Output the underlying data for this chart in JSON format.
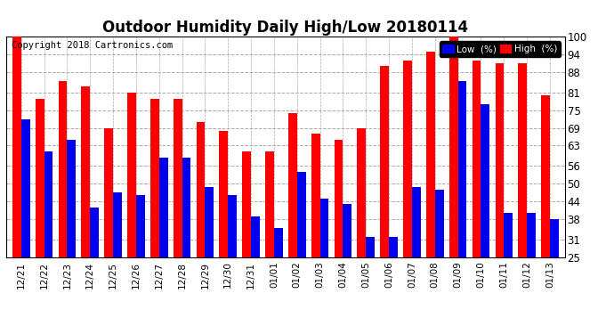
{
  "title": "Outdoor Humidity Daily High/Low 20180114",
  "copyright": "Copyright 2018 Cartronics.com",
  "dates": [
    "12/21",
    "12/22",
    "12/23",
    "12/24",
    "12/25",
    "12/26",
    "12/27",
    "12/28",
    "12/29",
    "12/30",
    "12/31",
    "01/01",
    "01/02",
    "01/03",
    "01/04",
    "01/05",
    "01/06",
    "01/07",
    "01/08",
    "01/09",
    "01/10",
    "01/11",
    "01/12",
    "01/13"
  ],
  "high": [
    100,
    79,
    85,
    83,
    69,
    81,
    79,
    79,
    71,
    68,
    61,
    61,
    74,
    67,
    65,
    69,
    90,
    92,
    95,
    100,
    92,
    91,
    91,
    80
  ],
  "low": [
    72,
    61,
    65,
    42,
    47,
    46,
    59,
    59,
    49,
    46,
    39,
    35,
    54,
    45,
    43,
    32,
    32,
    49,
    48,
    85,
    77,
    40,
    40,
    38
  ],
  "ylim_min": 25,
  "ylim_max": 100,
  "yticks": [
    25,
    31,
    38,
    44,
    50,
    56,
    63,
    69,
    75,
    81,
    88,
    94,
    100
  ],
  "bar_width": 0.38,
  "high_color": "#ff0000",
  "low_color": "#0000ee",
  "bg_color": "#ffffff",
  "grid_color": "#aaaaaa",
  "title_fontsize": 12,
  "copyright_fontsize": 7.5,
  "legend_label_low": "Low  (%)",
  "legend_label_high": "High  (%)"
}
